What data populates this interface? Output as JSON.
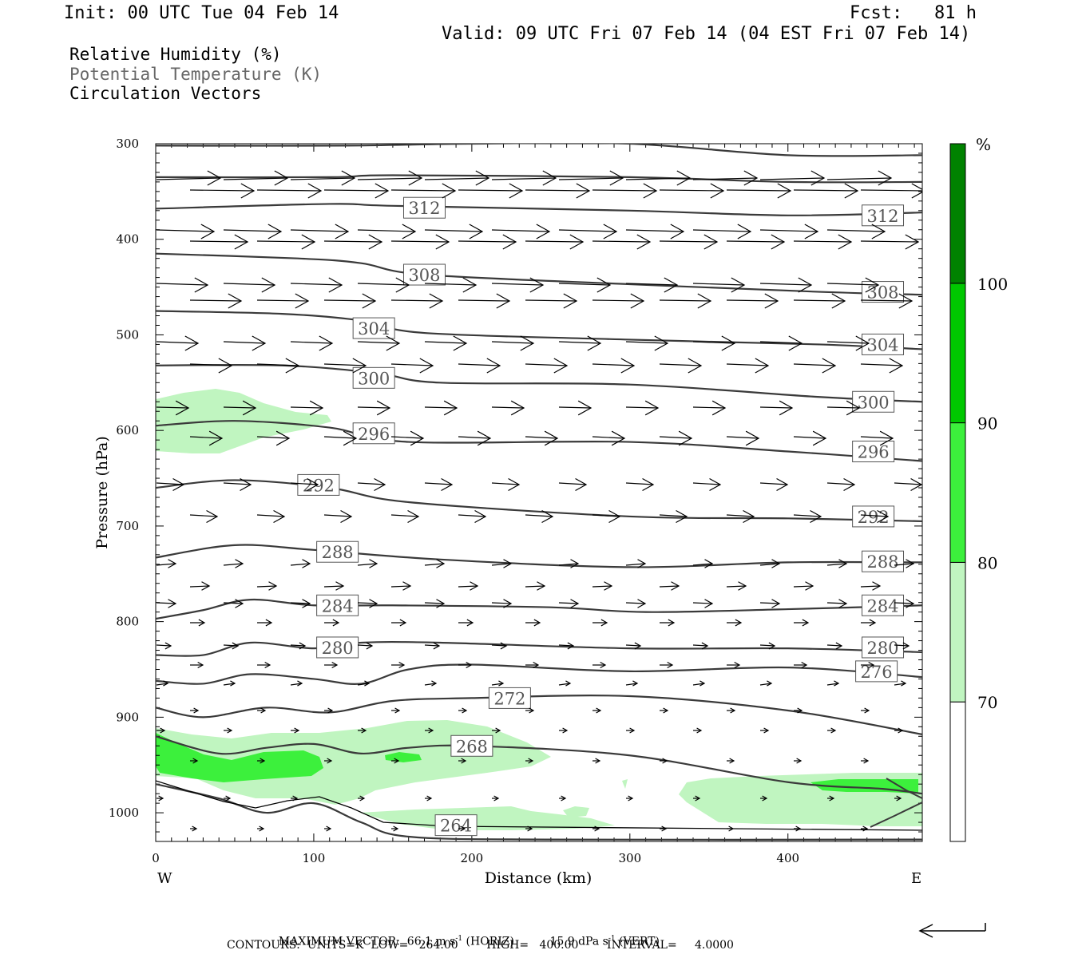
{
  "header": {
    "init": "Init: 00 UTC Tue 04 Feb 14",
    "fcst": "Fcst:   81 h",
    "valid": "Valid: 09 UTC Fri 07 Feb 14 (04 EST Fri 07 Feb 14)"
  },
  "legend": {
    "rh": "Relative Humidity (%)",
    "theta": "Potential Temperature (K)",
    "vectors": "Circulation Vectors"
  },
  "footer": {
    "max_vector_prefix": "MAXIMUM VECTOR:  66.1 m s",
    "max_vector_mid": " (HORIZ)          15.9 dPa s",
    "max_vector_suffix": " (VERT)",
    "exp": "-1",
    "contours": "CONTOURS:  UNITS=K  LOW=   264.00        HIGH=   400.00        INTERVAL=     4.0000"
  },
  "colors": {
    "rh_70": "#c0f5c0",
    "rh_80": "#3cf03c",
    "rh_90": "#00c800",
    "rh_100": "#008200",
    "contour": "#3a3a3a"
  },
  "chart_data": {
    "type": "cross-section",
    "xlabel": "Distance (km)",
    "ylabel": "Pressure (hPa)",
    "xlim": [
      0,
      485
    ],
    "ylim": [
      1030,
      300
    ],
    "x_ticks": [
      0,
      100,
      200,
      300,
      400
    ],
    "y_ticks": [
      300,
      400,
      500,
      600,
      700,
      800,
      900,
      1000
    ],
    "x_end_labels": {
      "left": "W",
      "right": "E"
    },
    "colorbar": {
      "unit": "%",
      "levels": [
        70,
        80,
        90,
        100
      ],
      "bins": [
        {
          "from": 60,
          "to": 70,
          "color": "#ffffff"
        },
        {
          "from": 70,
          "to": 80,
          "color": "#c0f5c0"
        },
        {
          "from": 80,
          "to": 90,
          "color": "#3cf03c"
        },
        {
          "from": 90,
          "to": 100,
          "color": "#00c800"
        },
        {
          "from": 100,
          "to": 110,
          "color": "#008200"
        }
      ]
    },
    "theta_contours": [
      {
        "value": 264,
        "points": [
          [
            0,
            970
          ],
          [
            40,
            985
          ],
          [
            70,
            1000
          ],
          [
            100,
            990
          ],
          [
            130,
            1010
          ],
          [
            160,
            1025
          ],
          [
            250,
            1028
          ],
          [
            485,
            1028
          ]
        ],
        "labels": [
          [
            190,
            1013
          ]
        ]
      },
      {
        "value": 268,
        "points": [
          [
            0,
            920
          ],
          [
            40,
            938
          ],
          [
            70,
            932
          ],
          [
            100,
            928
          ],
          [
            130,
            938
          ],
          [
            160,
            932
          ],
          [
            200,
            930
          ],
          [
            300,
            940
          ],
          [
            400,
            968
          ],
          [
            460,
            975
          ],
          [
            485,
            980
          ]
        ],
        "labels": [
          [
            200,
            930
          ]
        ]
      },
      {
        "value": 272,
        "points": [
          [
            0,
            890
          ],
          [
            30,
            900
          ],
          [
            70,
            890
          ],
          [
            110,
            895
          ],
          [
            150,
            883
          ],
          [
            200,
            880
          ],
          [
            300,
            878
          ],
          [
            400,
            893
          ],
          [
            485,
            918
          ]
        ],
        "labels": [
          [
            224,
            880
          ]
        ]
      },
      {
        "value": 276,
        "points": [
          [
            0,
            862
          ],
          [
            30,
            865
          ],
          [
            60,
            855
          ],
          [
            100,
            860
          ],
          [
            130,
            865
          ],
          [
            160,
            850
          ],
          [
            200,
            845
          ],
          [
            300,
            852
          ],
          [
            400,
            848
          ],
          [
            485,
            858
          ]
        ],
        "labels": [
          [
            456,
            852
          ]
        ]
      },
      {
        "value": 280,
        "points": [
          [
            0,
            835
          ],
          [
            30,
            835
          ],
          [
            60,
            822
          ],
          [
            100,
            828
          ],
          [
            130,
            822
          ],
          [
            180,
            822
          ],
          [
            300,
            828
          ],
          [
            400,
            828
          ],
          [
            485,
            832
          ]
        ],
        "labels": [
          [
            115,
            827
          ],
          [
            460,
            827
          ]
        ]
      },
      {
        "value": 284,
        "points": [
          [
            0,
            797
          ],
          [
            30,
            788
          ],
          [
            60,
            777
          ],
          [
            100,
            783
          ],
          [
            150,
            783
          ],
          [
            250,
            785
          ],
          [
            310,
            790
          ],
          [
            400,
            787
          ],
          [
            485,
            783
          ]
        ],
        "labels": [
          [
            115,
            783
          ],
          [
            460,
            783
          ]
        ]
      },
      {
        "value": 288,
        "points": [
          [
            0,
            733
          ],
          [
            50,
            720
          ],
          [
            100,
            725
          ],
          [
            180,
            735
          ],
          [
            300,
            743
          ],
          [
            400,
            738
          ],
          [
            485,
            738
          ]
        ],
        "labels": [
          [
            115,
            727
          ],
          [
            460,
            737
          ]
        ]
      },
      {
        "value": 292,
        "points": [
          [
            0,
            660
          ],
          [
            50,
            652
          ],
          [
            110,
            660
          ],
          [
            160,
            675
          ],
          [
            300,
            690
          ],
          [
            400,
            692
          ],
          [
            485,
            695
          ]
        ],
        "labels": [
          [
            103,
            657
          ],
          [
            454,
            690
          ]
        ]
      },
      {
        "value": 296,
        "points": [
          [
            0,
            595
          ],
          [
            50,
            590
          ],
          [
            110,
            597
          ],
          [
            160,
            612
          ],
          [
            300,
            612
          ],
          [
            400,
            622
          ],
          [
            485,
            632
          ]
        ],
        "labels": [
          [
            138,
            603
          ],
          [
            454,
            622
          ]
        ]
      },
      {
        "value": 300,
        "points": [
          [
            0,
            532
          ],
          [
            80,
            532
          ],
          [
            140,
            540
          ],
          [
            180,
            550
          ],
          [
            300,
            552
          ],
          [
            420,
            565
          ],
          [
            485,
            570
          ]
        ],
        "labels": [
          [
            138,
            545
          ],
          [
            454,
            570
          ]
        ]
      },
      {
        "value": 304,
        "points": [
          [
            0,
            475
          ],
          [
            80,
            478
          ],
          [
            130,
            485
          ],
          [
            170,
            498
          ],
          [
            300,
            505
          ],
          [
            420,
            510
          ],
          [
            485,
            515
          ]
        ],
        "labels": [
          [
            138,
            493
          ],
          [
            460,
            510
          ]
        ]
      },
      {
        "value": 308,
        "points": [
          [
            0,
            415
          ],
          [
            90,
            420
          ],
          [
            130,
            425
          ],
          [
            170,
            437
          ],
          [
            300,
            447
          ],
          [
            420,
            455
          ],
          [
            485,
            458
          ]
        ],
        "labels": [
          [
            170,
            437
          ],
          [
            460,
            455
          ]
        ]
      },
      {
        "value": 312,
        "points": [
          [
            0,
            368
          ],
          [
            110,
            363
          ],
          [
            150,
            365
          ],
          [
            300,
            370
          ],
          [
            400,
            375
          ],
          [
            485,
            372
          ]
        ],
        "labels": [
          [
            170,
            367
          ],
          [
            460,
            375
          ]
        ]
      },
      {
        "value": 316,
        "points": [
          [
            0,
            335
          ],
          [
            110,
            335
          ],
          [
            150,
            333
          ],
          [
            300,
            335
          ],
          [
            400,
            340
          ],
          [
            485,
            340
          ]
        ],
        "labels": []
      },
      {
        "value": 320,
        "points": [
          [
            0,
            302
          ],
          [
            120,
            302
          ],
          [
            200,
            300
          ],
          [
            300,
            300
          ],
          [
            400,
            312
          ],
          [
            485,
            312
          ]
        ],
        "labels": []
      }
    ]
  }
}
